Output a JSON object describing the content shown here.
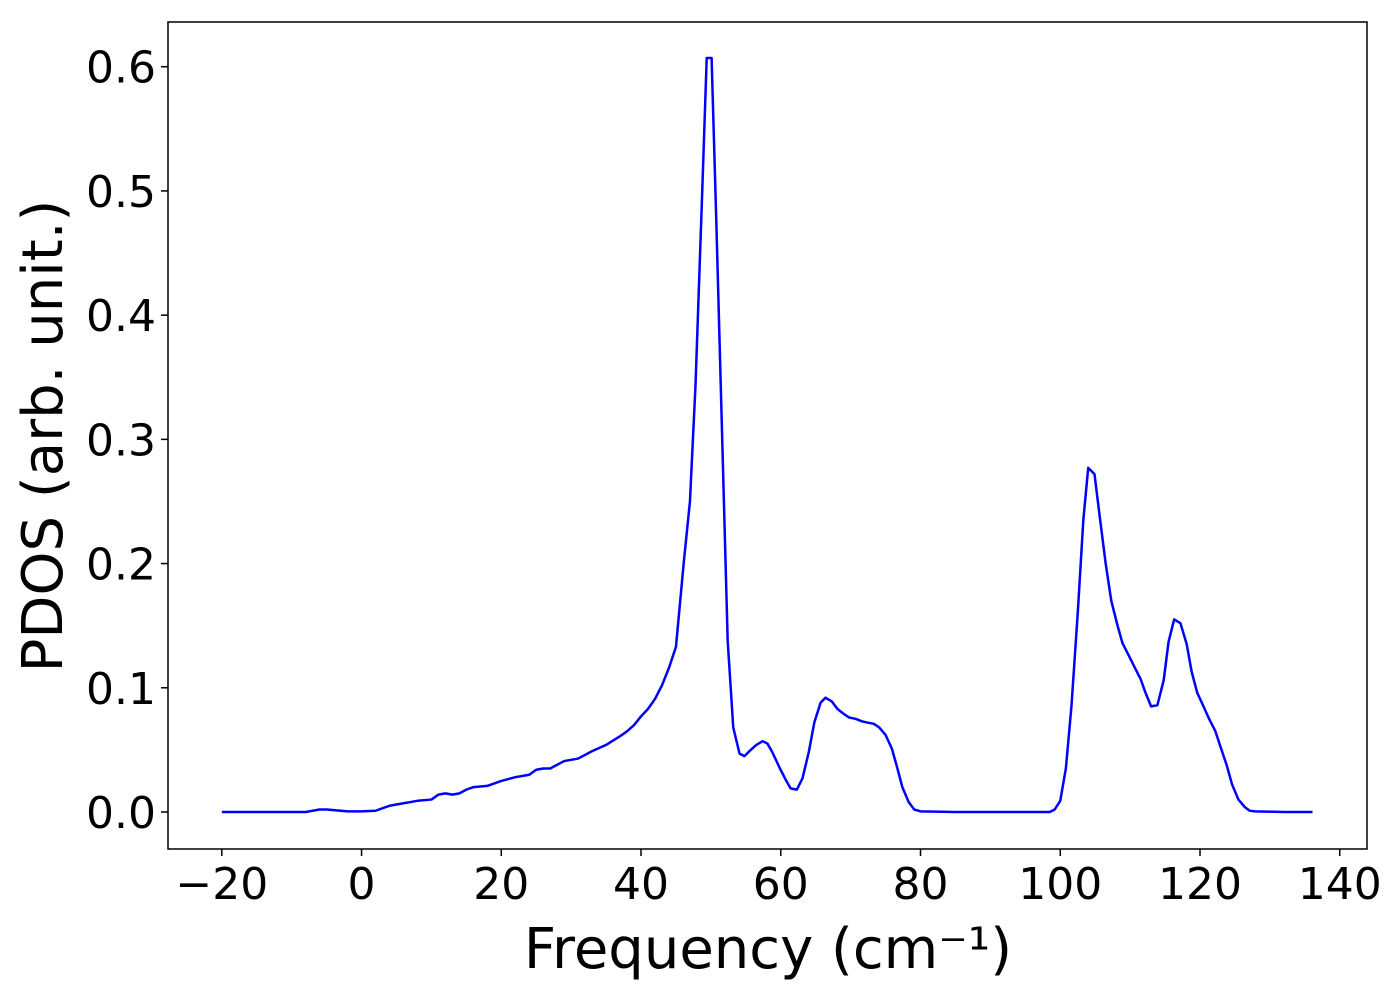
{
  "chart_data": {
    "type": "line",
    "xlabel": "Frequency (cm⁻¹)",
    "ylabel": "PDOS (arb. unit.)",
    "x": [
      -20,
      -16,
      -12,
      -8,
      -6,
      -5,
      -3,
      -2,
      0,
      2,
      3,
      4,
      5,
      6,
      7,
      8,
      10,
      11,
      12,
      13,
      14,
      15,
      16,
      18,
      20,
      22,
      24,
      25,
      26,
      27,
      28,
      29,
      31,
      33,
      35,
      37,
      38,
      39,
      40,
      41,
      42,
      43,
      44,
      45,
      46.1,
      47,
      47.8,
      48.7,
      49.4,
      50.1,
      50.8,
      52.4,
      53.2,
      54.1,
      54.8,
      55.7,
      56.5,
      57.4,
      58.1,
      58.8,
      59.8,
      60.7,
      61.4,
      62.3,
      63.1,
      64,
      64.8,
      65.7,
      66.4,
      67.3,
      68.1,
      69,
      69.8,
      70.7,
      71.6,
      72.4,
      73.3,
      74.1,
      75,
      75.9,
      76.6,
      77.4,
      78.3,
      79.1,
      80,
      85,
      90,
      95,
      98.5,
      99.2,
      100,
      100.8,
      101.6,
      102.5,
      103.3,
      104,
      104.9,
      105.6,
      106.5,
      107.3,
      108.2,
      108.9,
      109.8,
      110.6,
      111.5,
      112.2,
      113,
      113.9,
      114.8,
      115.5,
      116.3,
      117.2,
      118.1,
      118.8,
      119.6,
      120.5,
      121.3,
      122.2,
      122.9,
      123.8,
      124.6,
      125.5,
      126.4,
      127.1,
      127.9,
      132,
      136.1
    ],
    "series": [
      {
        "name": "PDOS",
        "color": "#0000ff",
        "values": [
          0,
          0,
          0,
          0,
          0.002,
          0.002,
          0.001,
          0.0005,
          0.0005,
          0.001,
          0.003,
          0.005,
          0.006,
          0.007,
          0.008,
          0.009,
          0.01,
          0.014,
          0.015,
          0.014,
          0.015,
          0.018,
          0.02,
          0.021,
          0.025,
          0.028,
          0.03,
          0.034,
          0.035,
          0.035,
          0.038,
          0.041,
          0.043,
          0.049,
          0.054,
          0.061,
          0.065,
          0.07,
          0.077,
          0.083,
          0.091,
          0.102,
          0.116,
          0.133,
          0.2,
          0.25,
          0.344,
          0.49,
          0.607,
          0.607,
          0.47,
          0.138,
          0.068,
          0.047,
          0.045,
          0.05,
          0.054,
          0.057,
          0.055,
          0.048,
          0.036,
          0.026,
          0.019,
          0.018,
          0.027,
          0.048,
          0.072,
          0.088,
          0.092,
          0.089,
          0.083,
          0.079,
          0.076,
          0.075,
          0.073,
          0.072,
          0.071,
          0.068,
          0.062,
          0.051,
          0.037,
          0.02,
          0.008,
          0.002,
          0.0005,
          0,
          0,
          0,
          0,
          0.002,
          0.009,
          0.035,
          0.085,
          0.16,
          0.235,
          0.277,
          0.272,
          0.24,
          0.2,
          0.17,
          0.15,
          0.136,
          0.126,
          0.117,
          0.107,
          0.096,
          0.085,
          0.086,
          0.106,
          0.137,
          0.155,
          0.152,
          0.135,
          0.113,
          0.096,
          0.085,
          0.075,
          0.065,
          0.053,
          0.038,
          0.022,
          0.01,
          0.004,
          0.001,
          0.0005,
          0,
          0
        ]
      }
    ],
    "xlim": [
      -27.7,
      143.9
    ],
    "ylim": [
      -0.0298,
      0.636
    ],
    "xticks": [
      {
        "value": -20,
        "label": "−20"
      },
      0,
      20,
      40,
      60,
      80,
      100,
      120,
      140
    ],
    "yticks": [
      {
        "value": 0,
        "label": "0.0"
      },
      0.1,
      0.2,
      0.3,
      0.4,
      0.5,
      0.6
    ],
    "grid": false
  }
}
